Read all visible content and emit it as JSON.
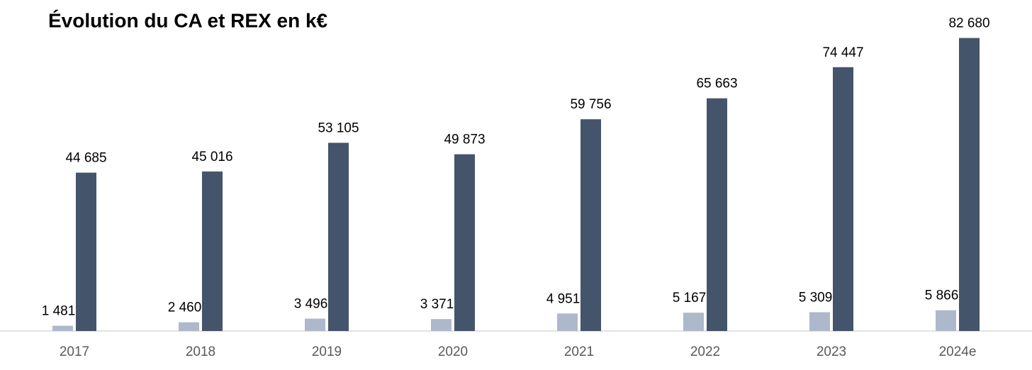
{
  "chart_data": {
    "type": "bar",
    "title": "Évolution du CA et REX en k€",
    "categories": [
      "2017",
      "2018",
      "2019",
      "2020",
      "2021",
      "2022",
      "2023",
      "2024e"
    ],
    "series": [
      {
        "color": "#adb9ca",
        "values": [
          1481,
          2460,
          3496,
          3371,
          4951,
          5167,
          5309,
          5866
        ],
        "value_labels": [
          "1 481",
          "2 460",
          "3 496",
          "3 371",
          "4 951",
          "5 167",
          "5 309",
          "5 866"
        ]
      },
      {
        "color": "#44546a",
        "values": [
          44685,
          45016,
          53105,
          49873,
          59756,
          65663,
          74447,
          82680
        ],
        "value_labels": [
          "44 685",
          "45 016",
          "53 105",
          "49 873",
          "59 756",
          "65 663",
          "74 447",
          "82 680"
        ]
      }
    ],
    "ylim": [
      0,
      85000
    ]
  }
}
